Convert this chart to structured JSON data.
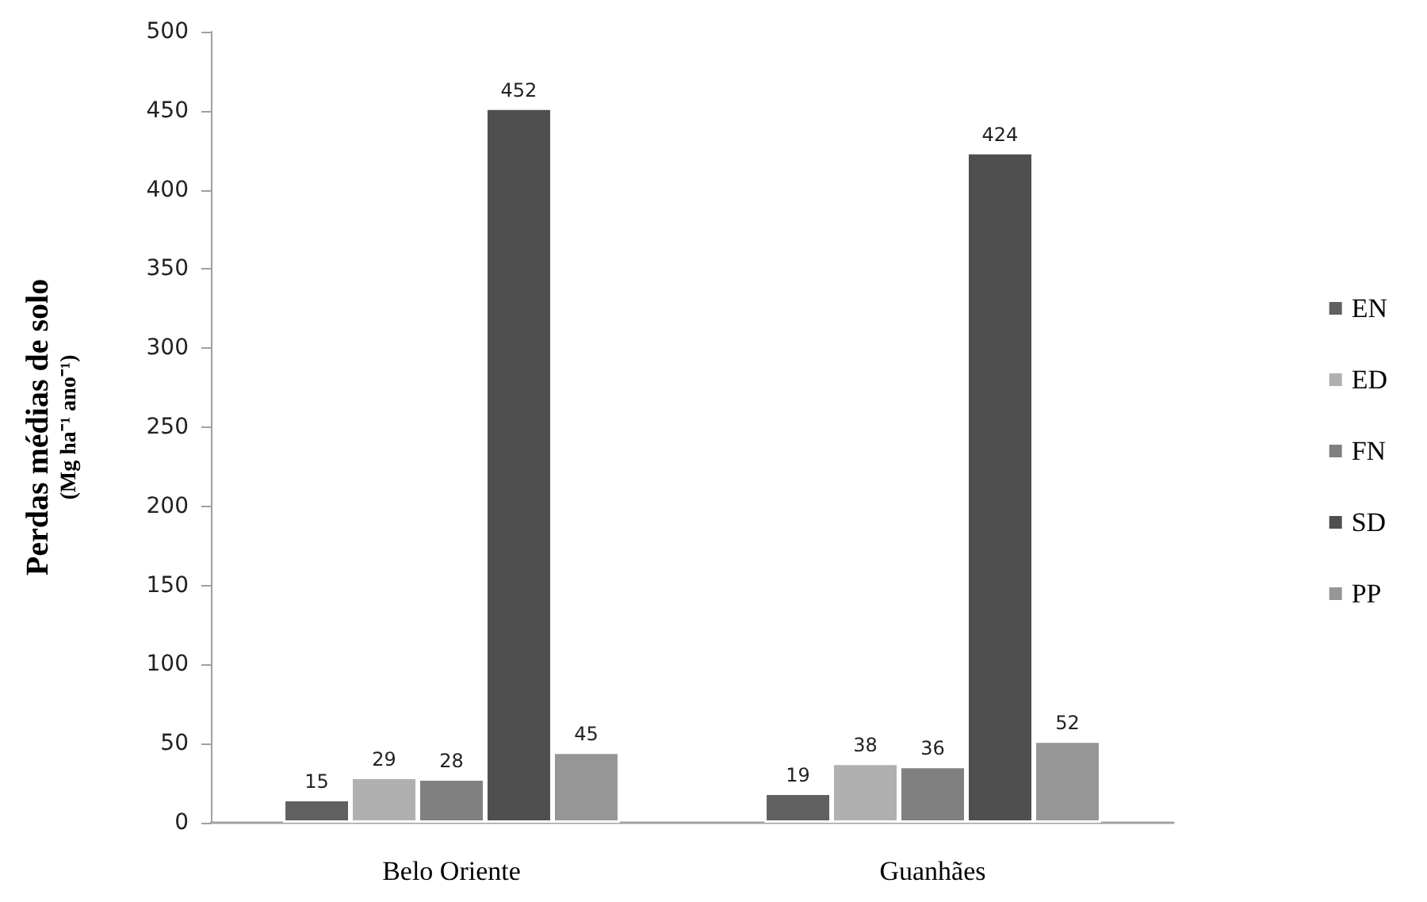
{
  "chart_data": {
    "type": "bar",
    "ylabel": "Perdas médias de solo\n(Mg ha⁻¹ ano⁻¹)",
    "categories": [
      "Belo Oriente",
      "Guanhães"
    ],
    "series": [
      {
        "name": "EN",
        "color": "#606060",
        "values": [
          15,
          19
        ]
      },
      {
        "name": "ED",
        "color": "#b0b0b0",
        "values": [
          29,
          38
        ]
      },
      {
        "name": "FN",
        "color": "#808080",
        "values": [
          28,
          36
        ]
      },
      {
        "name": "SD",
        "color": "#4f4f4f",
        "values": [
          452,
          424
        ]
      },
      {
        "name": "PP",
        "color": "#969696",
        "values": [
          45,
          52
        ]
      }
    ],
    "ylim": [
      0,
      500
    ],
    "yticks": [
      0,
      50,
      100,
      150,
      200,
      250,
      300,
      350,
      400,
      450,
      500
    ],
    "grid": false,
    "legend": "right",
    "data_labels": true
  }
}
